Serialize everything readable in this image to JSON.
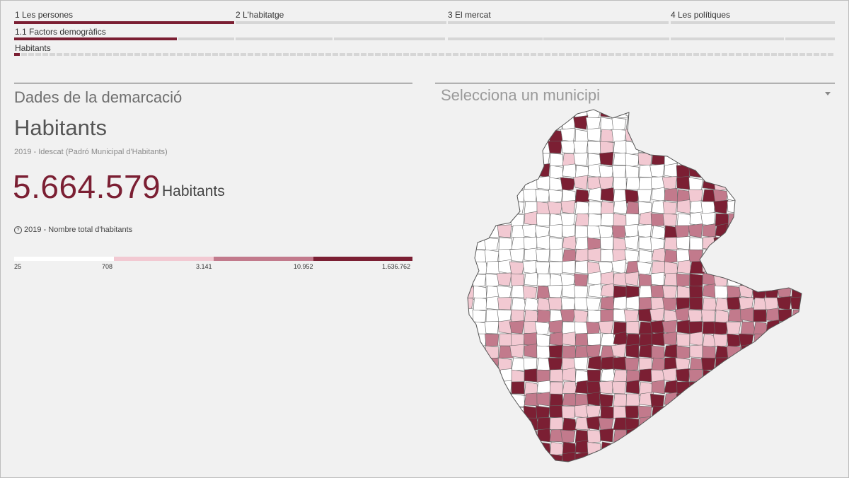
{
  "nav": {
    "sections": [
      {
        "label": "1 Les persones",
        "active": true
      },
      {
        "label": "2 L'habitatge",
        "active": false
      },
      {
        "label": "3 El mercat",
        "active": false
      },
      {
        "label": "4 Les polítiques",
        "active": false
      }
    ],
    "subsection": {
      "label": "1.1 Factors demogràfics"
    },
    "indicator_tab": {
      "label": "Habitants"
    }
  },
  "left": {
    "heading": "Dades de la demarcació",
    "indicator": "Habitants",
    "source": "2019 - Idescat (Padró Municipal d'Habitants)",
    "value": "5.664.579",
    "unit": "Habitants",
    "note_icon": "?",
    "note": "2019 - Nombre total d'habitants",
    "legend": {
      "ticks": [
        "25",
        "708",
        "3.141",
        "10.952",
        "1.636.762"
      ],
      "colors": [
        "#ffffff",
        "#f2c9d2",
        "#c27a8c",
        "#7b1f33"
      ]
    }
  },
  "right": {
    "select_label": "Selecciona un municipi",
    "select_icon": "chevron-down-icon"
  },
  "map": {
    "colors": [
      "#ffffff",
      "#f2c9d2",
      "#c27a8c",
      "#7b1f33"
    ]
  }
}
